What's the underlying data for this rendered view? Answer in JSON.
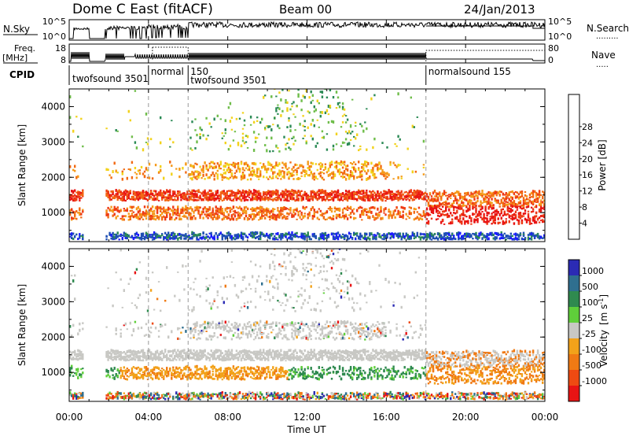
{
  "header": {
    "title": "Dome C East (fitACF)",
    "beam": "Beam 00",
    "date": "24/Jan/2013"
  },
  "nsky_panel": {
    "label": "N.Sky",
    "left_ticks": [
      "10^5",
      "10^0"
    ],
    "right_ticks": [
      "10^5",
      "10^0"
    ],
    "right_label": "N.Search",
    "right_line": "........."
  },
  "freq_panel": {
    "label_line1": "Freq.",
    "label_line2": "[MHz]",
    "left_ticks": [
      "18",
      "8"
    ],
    "right_ticks": [
      "80",
      "0"
    ],
    "right_label": "Nave",
    "right_line": "....."
  },
  "cpid": {
    "label": "CPID",
    "segments": [
      {
        "start_hour": 0.0,
        "end_hour": 4.0,
        "text": "twofsound 3501"
      },
      {
        "start_hour": 4.0,
        "end_hour": 6.0,
        "text": "normal"
      },
      {
        "start_hour": 6.0,
        "end_hour": 18.0,
        "text": "150"
      },
      {
        "start_hour": 6.0,
        "end_hour": 18.0,
        "text": "twofsound 3501"
      },
      {
        "start_hour": 18.0,
        "end_hour": 24.0,
        "text": "normalsound 155"
      }
    ]
  },
  "x_axis": {
    "label": "Time UT",
    "ticks": [
      "00:00",
      "04:00",
      "08:00",
      "12:00",
      "16:00",
      "20:00",
      "00:00"
    ]
  },
  "colors": {
    "power": [
      "#1a1aff",
      "#1f4fb4",
      "#2b8a55",
      "#6fbd4a",
      "#f2d21b",
      "#f59a1a",
      "#f26a14",
      "#ee3a16",
      "#e81414"
    ],
    "velocity_scale": [
      "#2b2bb4",
      "#2f6f8f",
      "#2f8a4f",
      "#5fcf3a",
      "#c8c8c4",
      "#f2a21a",
      "#f07a14",
      "#ee4a12",
      "#e81414"
    ],
    "ground_scatter": "#c8c8c4"
  },
  "chart_data": [
    {
      "type": "heatmap",
      "title": "",
      "xlabel": "",
      "ylabel": "Slant Range [km]",
      "xlim": [
        0,
        24
      ],
      "ylim": [
        180,
        4500
      ],
      "yticks": [
        "1000",
        "2000",
        "3000",
        "4000"
      ],
      "colorbar_label": "Power [dB]",
      "colorbar_ticks": [
        "4",
        "8",
        "12",
        "16",
        "20",
        "24",
        "28"
      ],
      "grid": false
    },
    {
      "type": "heatmap",
      "title": "",
      "xlabel": "Time UT",
      "ylabel": "Slant Range [km]",
      "xlim": [
        0,
        24
      ],
      "ylim": [
        180,
        4500
      ],
      "yticks": [
        "1000",
        "2000",
        "3000",
        "4000"
      ],
      "colorbar_label": "Velocity",
      "colorbar_unit": "[m s",
      "colorbar_unit_sup": "-1",
      "colorbar_unit_end": "]",
      "colorbar_ticks": [
        "1000",
        "500",
        "100",
        "25",
        "-25",
        "-100",
        "-500",
        "-1000"
      ],
      "grid": false
    }
  ]
}
